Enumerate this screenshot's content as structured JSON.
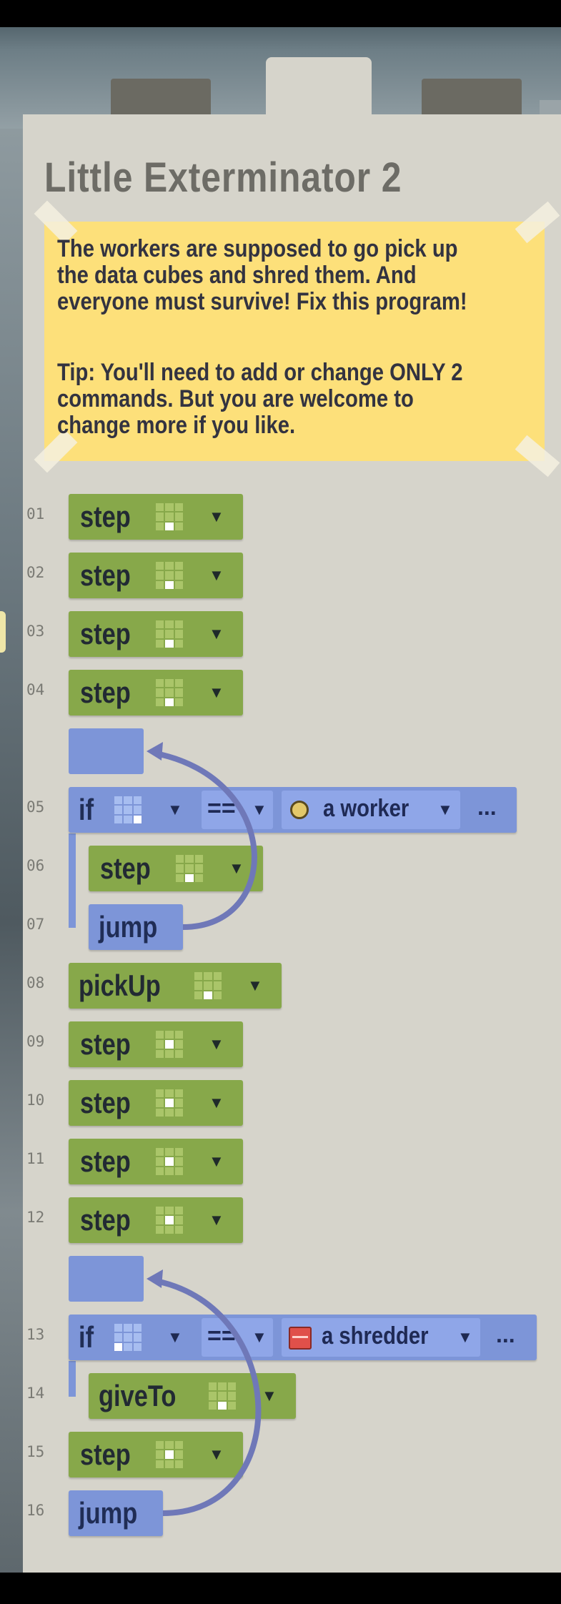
{
  "level": {
    "title": "Little Exterminator 2",
    "note_lines": [
      "The workers are supposed to go pick up",
      "the data cubes and shred them. And",
      "everyone must survive! Fix this program!",
      "",
      "Tip: You'll need to add or change ONLY 2",
      "commands. But you are welcome to",
      "change more if you like."
    ]
  },
  "program": {
    "lines": [
      {
        "num": "01",
        "cmd": "step",
        "dir": 7
      },
      {
        "num": "02",
        "cmd": "step",
        "dir": 7
      },
      {
        "num": "03",
        "cmd": "step",
        "dir": 7
      },
      {
        "num": "04",
        "cmd": "step",
        "dir": 7
      },
      {
        "num": "05",
        "cmd": "if",
        "dir": 8,
        "op": "==",
        "target": "a worker",
        "more": "..."
      },
      {
        "num": "06",
        "cmd": "step",
        "dir": 7
      },
      {
        "num": "07",
        "cmd": "jump"
      },
      {
        "num": "08",
        "cmd": "pickUp",
        "dir": 7
      },
      {
        "num": "09",
        "cmd": "step",
        "dir": 4
      },
      {
        "num": "10",
        "cmd": "step",
        "dir": 4
      },
      {
        "num": "11",
        "cmd": "step",
        "dir": 4
      },
      {
        "num": "12",
        "cmd": "step",
        "dir": 4
      },
      {
        "num": "13",
        "cmd": "if",
        "dir": 6,
        "op": "==",
        "target": "a shredder",
        "more": "..."
      },
      {
        "num": "14",
        "cmd": "giveTo",
        "dir": 7
      },
      {
        "num": "15",
        "cmd": "step",
        "dir": 4
      },
      {
        "num": "16",
        "cmd": "jump"
      }
    ]
  },
  "colors": {
    "command_green": "#87a84a",
    "control_blue": "#7d95d8",
    "note_yellow": "#fde07a",
    "panel": "#d6d4cb"
  }
}
